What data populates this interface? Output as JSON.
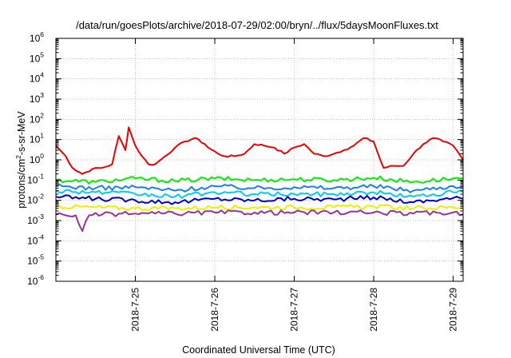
{
  "chart_data": {
    "type": "line",
    "title": "/data/run/goesPlots/archive/2018-07-29/02:00/bryn/../flux/5daysMoonFluxes.txt",
    "xlabel": "Coordinated Universal Time (UTC)",
    "ylabel": "protons/cm²-s-sr-MeV",
    "ylabel_parts": {
      "pre": "protons/cm",
      "sup": "2",
      "post": "-s-sr-MeV"
    },
    "yscale": "log",
    "ylim": [
      1e-06,
      1000000.0
    ],
    "xlim": [
      "2018-07-24 00:00",
      "2018-07-29 03:00"
    ],
    "grid": true,
    "x_ticks": [
      {
        "x": "2018-07-25 00:00",
        "label": "2018-7-25"
      },
      {
        "x": "2018-07-26 00:00",
        "label": "2018-7-26"
      },
      {
        "x": "2018-07-27 00:00",
        "label": "2018-7-27"
      },
      {
        "x": "2018-07-28 00:00",
        "label": "2018-7-28"
      },
      {
        "x": "2018-07-29 00:00",
        "label": "2018-7-29"
      }
    ],
    "y_ticks": [
      {
        "base": "10",
        "exp": "-6"
      },
      {
        "base": "10",
        "exp": "-5"
      },
      {
        "base": "10",
        "exp": "-4"
      },
      {
        "base": "10",
        "exp": "-3"
      },
      {
        "base": "10",
        "exp": "-2"
      },
      {
        "base": "10",
        "exp": "-1"
      },
      {
        "base": "10",
        "exp": "0"
      },
      {
        "base": "10",
        "exp": "1"
      },
      {
        "base": "10",
        "exp": "2"
      },
      {
        "base": "10",
        "exp": "3"
      },
      {
        "base": "10",
        "exp": "4"
      },
      {
        "base": "10",
        "exp": "5"
      },
      {
        "base": "10",
        "exp": "6"
      }
    ],
    "series": [
      {
        "color": "#ee0000",
        "x": [
          "2018-07-24 00:00",
          "2018-07-24 03:00",
          "2018-07-24 05:00",
          "2018-07-24 08:00",
          "2018-07-24 11:00",
          "2018-07-24 14:00",
          "2018-07-24 17:00",
          "2018-07-24 19:00",
          "2018-07-24 21:00",
          "2018-07-24 22:00",
          "2018-07-25 00:00",
          "2018-07-25 02:00",
          "2018-07-25 04:00",
          "2018-07-25 06:00",
          "2018-07-25 09:00",
          "2018-07-25 12:00",
          "2018-07-25 15:00",
          "2018-07-25 18:00",
          "2018-07-25 21:00",
          "2018-07-25 22:00",
          "2018-07-26 01:00",
          "2018-07-26 03:00",
          "2018-07-26 06:00",
          "2018-07-26 09:00",
          "2018-07-26 12:00",
          "2018-07-26 15:00",
          "2018-07-26 18:00",
          "2018-07-26 21:00",
          "2018-07-27 00:00",
          "2018-07-27 03:00",
          "2018-07-27 06:00",
          "2018-07-27 09:00",
          "2018-07-27 12:00",
          "2018-07-27 15:00",
          "2018-07-27 18:00",
          "2018-07-27 21:00",
          "2018-07-28 00:00",
          "2018-07-28 02:00",
          "2018-07-28 03:00",
          "2018-07-28 06:00",
          "2018-07-28 09:00",
          "2018-07-28 12:00",
          "2018-07-28 15:00",
          "2018-07-28 18:00",
          "2018-07-28 21:00",
          "2018-07-29 00:00",
          "2018-07-29 03:00"
        ],
        "values": [
          5,
          1.5,
          0.4,
          0.2,
          0.35,
          0.4,
          0.6,
          15,
          3,
          40,
          5,
          1.5,
          0.6,
          0.6,
          1.5,
          4,
          8,
          12,
          6,
          4,
          2,
          1.5,
          1.5,
          2,
          6,
          5,
          4,
          2,
          4,
          6,
          2,
          1.5,
          2,
          3,
          5,
          12,
          8,
          1,
          0.4,
          0.5,
          0.5,
          2,
          6,
          12,
          8,
          5,
          1
        ]
      },
      {
        "color": "#00ee00",
        "x": [
          "2018-07-24 00:00",
          "2018-07-24 12:00",
          "2018-07-25 00:00",
          "2018-07-25 12:00",
          "2018-07-26 00:00",
          "2018-07-26 12:00",
          "2018-07-27 00:00",
          "2018-07-27 12:00",
          "2018-07-28 00:00",
          "2018-07-28 12:00",
          "2018-07-29 00:00",
          "2018-07-29 03:00"
        ],
        "values": [
          0.1,
          0.08,
          0.12,
          0.09,
          0.12,
          0.1,
          0.11,
          0.1,
          0.13,
          0.08,
          0.12,
          0.12
        ]
      },
      {
        "color": "#1a7ff0",
        "x": [
          "2018-07-24 00:00",
          "2018-07-24 12:00",
          "2018-07-25 00:00",
          "2018-07-25 12:00",
          "2018-07-26 00:00",
          "2018-07-26 12:00",
          "2018-07-27 00:00",
          "2018-07-27 12:00",
          "2018-07-28 00:00",
          "2018-07-28 12:00",
          "2018-07-29 00:00",
          "2018-07-29 03:00"
        ],
        "values": [
          0.05,
          0.04,
          0.045,
          0.03,
          0.05,
          0.04,
          0.045,
          0.04,
          0.05,
          0.03,
          0.05,
          0.05
        ]
      },
      {
        "color": "#00ccee",
        "x": [
          "2018-07-24 00:00",
          "2018-07-24 12:00",
          "2018-07-25 00:00",
          "2018-07-25 12:00",
          "2018-07-26 00:00",
          "2018-07-26 12:00",
          "2018-07-27 00:00",
          "2018-07-27 12:00",
          "2018-07-28 00:00",
          "2018-07-28 12:00",
          "2018-07-29 00:00",
          "2018-07-29 03:00"
        ],
        "values": [
          0.03,
          0.025,
          0.02,
          0.015,
          0.025,
          0.02,
          0.02,
          0.02,
          0.025,
          0.015,
          0.025,
          0.025
        ]
      },
      {
        "color": "#0000cc",
        "x": [
          "2018-07-24 00:00",
          "2018-07-24 12:00",
          "2018-07-25 00:00",
          "2018-07-25 12:00",
          "2018-07-26 00:00",
          "2018-07-26 12:00",
          "2018-07-27 00:00",
          "2018-07-27 12:00",
          "2018-07-28 00:00",
          "2018-07-28 12:00",
          "2018-07-29 00:00",
          "2018-07-29 03:00"
        ],
        "values": [
          0.015,
          0.012,
          0.01,
          0.008,
          0.012,
          0.01,
          0.012,
          0.011,
          0.014,
          0.008,
          0.013,
          0.012
        ]
      },
      {
        "color": "#eeee00",
        "x": [
          "2018-07-24 00:00",
          "2018-07-24 12:00",
          "2018-07-25 00:00",
          "2018-07-25 12:00",
          "2018-07-26 00:00",
          "2018-07-26 12:00",
          "2018-07-27 00:00",
          "2018-07-27 12:00",
          "2018-07-28 00:00",
          "2018-07-28 12:00",
          "2018-07-29 00:00",
          "2018-07-29 03:00"
        ],
        "values": [
          0.005,
          0.0045,
          0.004,
          0.004,
          0.0045,
          0.0045,
          0.0045,
          0.0045,
          0.005,
          0.004,
          0.0045,
          0.0045
        ]
      },
      {
        "color": "#993399",
        "x": [
          "2018-07-24 00:00",
          "2018-07-24 06:00",
          "2018-07-24 08:00",
          "2018-07-24 10:00",
          "2018-07-24 14:00",
          "2018-07-25 00:00",
          "2018-07-25 12:00",
          "2018-07-26 00:00",
          "2018-07-26 12:00",
          "2018-07-27 00:00",
          "2018-07-27 12:00",
          "2018-07-28 00:00",
          "2018-07-28 12:00",
          "2018-07-29 00:00",
          "2018-07-29 03:00"
        ],
        "values": [
          0.002,
          0.0018,
          0.0003,
          0.0018,
          0.002,
          0.0022,
          0.0022,
          0.0025,
          0.0025,
          0.0025,
          0.0025,
          0.0025,
          0.0022,
          0.0025,
          0.002
        ]
      }
    ]
  }
}
